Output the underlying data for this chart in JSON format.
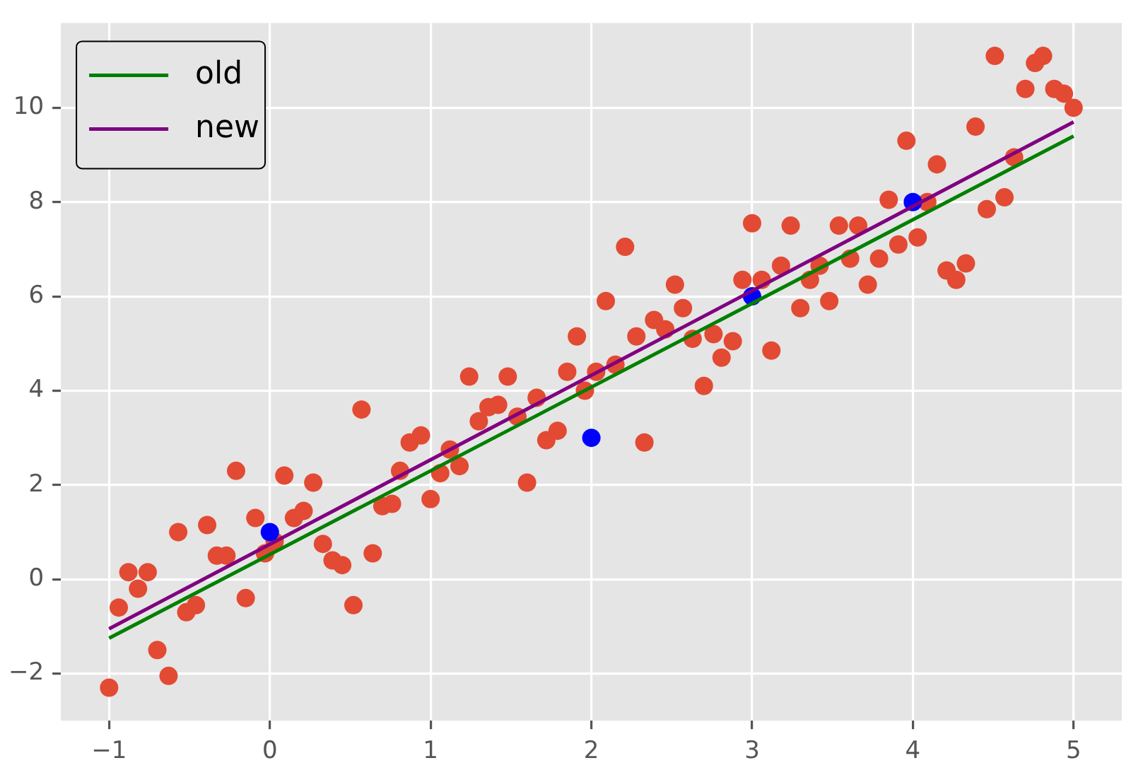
{
  "chart_data": {
    "type": "scatter",
    "xlim": [
      -1.3,
      5.3
    ],
    "ylim": [
      -3,
      11.8
    ],
    "xticks": [
      {
        "value": -1,
        "label": "−1"
      },
      0,
      1,
      2,
      3,
      4,
      5
    ],
    "yticks": [
      {
        "value": -2,
        "label": "−2"
      },
      0,
      2,
      4,
      6,
      8,
      10
    ],
    "grid": true,
    "legend": "top left",
    "series": [
      {
        "type": "scatter",
        "marker": "circle",
        "color": "#e24a33",
        "x": [
          -1.0,
          -0.94,
          -0.88,
          -0.82,
          -0.76,
          -0.7,
          -0.63,
          -0.57,
          -0.52,
          -0.46,
          -0.39,
          -0.33,
          -0.27,
          -0.21,
          -0.15,
          -0.09,
          -0.03,
          0.03,
          0.09,
          0.15,
          0.21,
          0.27,
          0.33,
          0.39,
          0.45,
          0.52,
          0.57,
          0.64,
          0.7,
          0.76,
          0.81,
          0.87,
          0.94,
          1.0,
          1.06,
          1.12,
          1.18,
          1.24,
          1.3,
          1.36,
          1.42,
          1.48,
          1.54,
          1.6,
          1.66,
          1.72,
          1.79,
          1.85,
          1.91,
          1.96,
          2.03,
          2.09,
          2.15,
          2.21,
          2.28,
          2.33,
          2.39,
          2.46,
          2.52,
          2.57,
          2.63,
          2.7,
          2.76,
          2.81,
          2.88,
          2.94,
          3.0,
          3.06,
          3.12,
          3.18,
          3.24,
          3.3,
          3.36,
          3.42,
          3.48,
          3.54,
          3.61,
          3.66,
          3.72,
          3.79,
          3.85,
          3.91,
          3.96,
          4.03,
          4.09,
          4.15,
          4.21,
          4.27,
          4.33,
          4.39,
          4.46,
          4.51,
          4.57,
          4.63,
          4.7,
          4.76,
          4.81,
          4.88,
          4.94,
          5.0
        ],
        "values": [
          -2.3,
          -0.6,
          0.15,
          -0.2,
          0.15,
          -1.5,
          -2.05,
          1.0,
          -0.7,
          -0.55,
          1.15,
          0.5,
          0.5,
          2.3,
          -0.4,
          1.3,
          0.55,
          0.8,
          2.2,
          1.3,
          1.45,
          2.05,
          0.75,
          0.4,
          0.3,
          -0.55,
          3.6,
          0.55,
          1.55,
          1.6,
          2.3,
          2.9,
          3.05,
          1.7,
          2.25,
          2.75,
          2.4,
          4.3,
          3.35,
          3.65,
          3.7,
          4.3,
          3.45,
          2.05,
          3.85,
          2.95,
          3.15,
          4.4,
          5.15,
          4.0,
          4.4,
          5.9,
          4.55,
          7.05,
          5.15,
          2.9,
          5.5,
          5.3,
          6.25,
          5.75,
          5.1,
          4.1,
          5.2,
          4.7,
          5.05,
          6.35,
          7.55,
          6.35,
          4.85,
          6.65,
          7.5,
          5.75,
          6.35,
          6.65,
          5.9,
          7.5,
          6.8,
          7.5,
          6.25,
          6.8,
          8.05,
          7.1,
          9.3,
          7.25,
          8.0,
          8.8,
          6.55,
          6.35,
          6.7,
          9.6,
          7.85,
          11.1,
          8.1,
          8.95,
          10.4,
          10.95,
          11.1,
          10.4,
          10.3,
          10.0
        ]
      },
      {
        "type": "scatter",
        "marker": "circle",
        "color": "#0000ff",
        "x": [
          0,
          2,
          3,
          4
        ],
        "values": [
          1,
          3,
          6,
          8
        ]
      },
      {
        "type": "line",
        "marker": "none",
        "name": "old",
        "color": "#008000",
        "x": [
          -1,
          5
        ],
        "values": [
          -1.25,
          9.4
        ]
      },
      {
        "type": "line",
        "marker": "none",
        "name": "new",
        "color": "#800080",
        "x": [
          -1,
          5
        ],
        "values": [
          -1.05,
          9.7
        ]
      }
    ]
  }
}
